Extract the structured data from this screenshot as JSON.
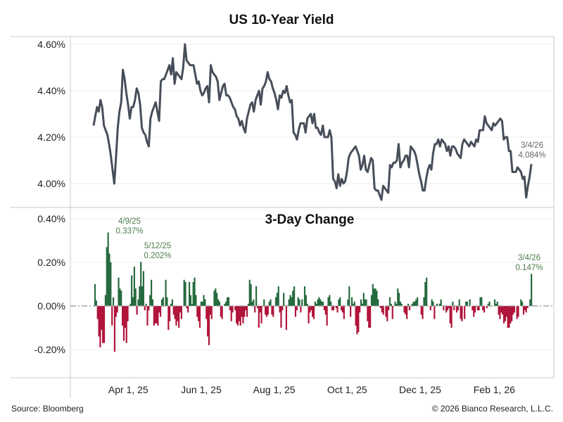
{
  "footer": {
    "source": "Source: Bloomberg",
    "copyright": "© 2026 Bianco Research, L.L.C."
  },
  "colors": {
    "line": "#474e5a",
    "positive": "#256a3e",
    "negative": "#b0143a",
    "grid": "#ececec",
    "border": "#c8c8c8",
    "annotation_gray": "#666666",
    "annotation_green": "#4e7d4e"
  },
  "chart_data": [
    {
      "type": "line",
      "title": "US 10-Year Yield",
      "xlabel": "",
      "ylabel": "",
      "ylim": [
        3.9,
        4.63
      ],
      "yticks": [
        4.0,
        4.2,
        4.4,
        4.6
      ],
      "ytick_labels": [
        "4.00%",
        "4.20%",
        "4.40%",
        "4.60%"
      ],
      "grid": true,
      "x_start": "2025-03-03",
      "x_end": "2026-03-04",
      "xticks": [
        "2025-04-01",
        "2025-06-01",
        "2025-08-01",
        "2025-10-01",
        "2025-12-01",
        "2026-02-01"
      ],
      "xtick_labels": [
        "Apr 1, 25",
        "Jun 1, 25",
        "Aug 1, 25",
        "Oct 1, 25",
        "Dec 1, 25",
        "Feb 1, 26"
      ],
      "series": [
        {
          "name": "US 10-Year Yield",
          "values": [
            4.25,
            4.29,
            4.33,
            4.31,
            4.36,
            4.33,
            4.25,
            4.23,
            4.21,
            4.17,
            4.12,
            4.06,
            4.0,
            4.11,
            4.24,
            4.31,
            4.35,
            4.49,
            4.45,
            4.39,
            4.34,
            4.28,
            4.33,
            4.33,
            4.36,
            4.41,
            4.39,
            4.34,
            4.24,
            4.22,
            4.21,
            4.18,
            4.16,
            4.28,
            4.31,
            4.33,
            4.35,
            4.31,
            4.27,
            4.44,
            4.45,
            4.45,
            4.47,
            4.49,
            4.51,
            4.47,
            4.54,
            4.43,
            4.48,
            4.47,
            4.46,
            4.45,
            4.5,
            4.6,
            4.53,
            4.52,
            4.51,
            4.51,
            4.51,
            4.47,
            4.43,
            4.44,
            4.4,
            4.38,
            4.39,
            4.41,
            4.42,
            4.35,
            4.51,
            4.48,
            4.47,
            4.46,
            4.44,
            4.36,
            4.39,
            4.42,
            4.43,
            4.38,
            4.38,
            4.37,
            4.35,
            4.33,
            4.32,
            4.29,
            4.28,
            4.25,
            4.27,
            4.24,
            4.22,
            4.28,
            4.31,
            4.34,
            4.35,
            4.31,
            4.36,
            4.38,
            4.4,
            4.34,
            4.41,
            4.42,
            4.44,
            4.48,
            4.45,
            4.44,
            4.41,
            4.39,
            4.36,
            4.32,
            4.38,
            4.37,
            4.4,
            4.39,
            4.42,
            4.38,
            4.35,
            4.36,
            4.22,
            4.21,
            4.19,
            4.23,
            4.26,
            4.26,
            4.26,
            4.22,
            4.28,
            4.29,
            4.3,
            4.26,
            4.3,
            4.24,
            4.24,
            4.22,
            4.21,
            4.25,
            4.2,
            4.2,
            4.2,
            4.23,
            4.2,
            4.02,
            4.01,
            3.98,
            4.04,
            3.99,
            4.02,
            4.0,
            4.01,
            4.05,
            4.11,
            4.13,
            4.14,
            4.15,
            4.16,
            4.14,
            4.12,
            4.06,
            4.08,
            4.12,
            4.06,
            4.05,
            4.08,
            4.11,
            4.1,
            3.98,
            3.97,
            3.97,
            3.95,
            3.93,
            3.99,
            3.98,
            3.97,
            3.96,
            4.08,
            4.07,
            4.09,
            4.09,
            4.1,
            4.17,
            4.07,
            4.09,
            4.1,
            4.12,
            4.12,
            4.07,
            4.16,
            4.15,
            4.14,
            4.12,
            4.08,
            4.04,
            4.01,
            3.97,
            3.97,
            4.02,
            4.06,
            4.08,
            4.06,
            4.13,
            4.17,
            4.17,
            4.19,
            4.16,
            4.19,
            4.18,
            4.17,
            4.14,
            4.16,
            4.12,
            4.16,
            4.16,
            4.15,
            4.13,
            4.12,
            4.11,
            4.17,
            4.19,
            4.18,
            4.17,
            4.16,
            4.18,
            4.17,
            4.16,
            4.19,
            4.18,
            4.23,
            4.23,
            4.23,
            4.29,
            4.26,
            4.25,
            4.24,
            4.23,
            4.26,
            4.25,
            4.26,
            4.27,
            4.28,
            4.27,
            4.19,
            4.2,
            4.2,
            4.14,
            4.14,
            4.05,
            4.05,
            4.05,
            4.07,
            4.06,
            4.05,
            4.02,
            4.03,
            3.94,
            3.99,
            4.03,
            4.084
          ]
        }
      ],
      "annotations": [
        {
          "date": "3/4/26",
          "label": "4.084%",
          "value": 4.084
        }
      ]
    },
    {
      "type": "bar",
      "title": "3-Day Change",
      "xlabel": "",
      "ylabel": "",
      "ylim": [
        -0.33,
        0.42
      ],
      "yticks": [
        -0.2,
        0.0,
        0.2,
        0.4
      ],
      "ytick_labels": [
        "-0.20%",
        "0.00%",
        "0.20%",
        "0.40%"
      ],
      "grid": true,
      "zero_line": "dashed",
      "series": [
        {
          "name": "3-Day Change",
          "values": [
            0.0,
            0.1,
            0.025,
            -0.06,
            -0.14,
            -0.19,
            -0.11,
            -0.17,
            -0.17,
            0.05,
            0.27,
            0.337,
            0.24,
            0.2,
            -0.09,
            0.04,
            -0.21,
            -0.05,
            -0.03,
            0.13,
            0.08,
            0.07,
            -0.09,
            -0.16,
            -0.1,
            -0.17,
            -0.07,
            0.0,
            0.01,
            0.14,
            0.04,
            0.18,
            0.08,
            -0.04,
            0.03,
            0.09,
            0.202,
            0.09,
            0.16,
            -0.02,
            0.01,
            -0.09,
            -0.02,
            0.05,
            0.12,
            0.03,
            -0.09,
            -0.08,
            -0.08,
            -0.09,
            -0.03,
            -0.05,
            0.03,
            0.04,
            0.0,
            0.12,
            0.04,
            -0.11,
            -0.07,
            0.01,
            0.03,
            -0.04,
            -0.06,
            -0.09,
            -0.07,
            -0.1,
            -0.03,
            -0.06,
            0.0,
            0.12,
            0.11,
            -0.01,
            -0.03,
            0.11,
            0.05,
            0.01,
            0.11,
            0.13,
            0.05,
            -0.05,
            -0.07,
            -0.1,
            0.02,
            0.02,
            0.05,
            0.03,
            -0.06,
            -0.14,
            -0.18,
            -0.04,
            -0.06,
            0.0,
            0.07,
            0.08,
            0.06,
            0.03,
            0.02,
            -0.05,
            -0.06,
            0.0,
            0.01,
            0.02,
            0.04,
            0.04,
            -0.02,
            -0.07,
            -0.03,
            0.0,
            -0.02,
            -0.08,
            -0.09,
            -0.07,
            -0.09,
            -0.05,
            -0.08,
            -0.05,
            -0.02,
            -0.05,
            0.01,
            0.12,
            0.1,
            0.02,
            0.03,
            -0.03,
            0.09,
            -0.01,
            -0.1,
            -0.03,
            -0.08,
            0.0,
            0.03,
            -0.04,
            -0.05,
            -0.04,
            0.02,
            0.03,
            -0.04,
            -0.05,
            0.0,
            0.04,
            0.06,
            0.09,
            -0.03,
            -0.1,
            -0.02,
            0.06,
            0.0,
            -0.11,
            0.0,
            0.03,
            0.05,
            0.04,
            0.07,
            0.09,
            -0.05,
            -0.02,
            0.04,
            0.03,
            -0.03,
            0.03,
            0.0,
            0.09,
            0.05,
            0.01,
            -0.08,
            -0.03,
            -0.02,
            -0.05,
            -0.06,
            0.02,
            0.01,
            0.03,
            0.04,
            0.03,
            0.02,
            0.02,
            -0.02,
            -0.04,
            -0.09,
            0.04,
            0.05,
            0.02,
            -0.02,
            -0.02,
            0.0,
            -0.01,
            -0.03,
            0.03,
            0.04,
            -0.02,
            -0.03,
            -0.06,
            0.0,
            0.0,
            0.03,
            0.09,
            -0.05,
            0.04,
            0.01,
            0.02,
            -0.09,
            -0.13,
            -0.12,
            -0.03,
            0.03,
            0.01,
            0.06,
            0.03,
            0.03,
            -0.07,
            -0.1,
            -0.1,
            0.05,
            0.1,
            0.08,
            0.08,
            0.07,
            0.03,
            0.0,
            -0.01,
            -0.03,
            -0.04,
            0.0,
            -0.05,
            -0.07,
            -0.02,
            0.04,
            0.01,
            -0.06,
            0.0,
            0.02,
            0.01,
            0.08,
            0.06,
            0.02,
            0.01,
            0.0,
            -0.03,
            -0.04,
            -0.06,
            0.01,
            -0.02,
            0.0,
            0.01,
            0.02,
            0.02,
            0.03,
            0.04,
            0.0,
            0.0,
            -0.04,
            -0.06,
            0.04,
            0.11,
            0.13,
            0.0,
            0.0,
            -0.02,
            0.03,
            0.02,
            -0.06,
            0.0,
            0.01,
            0.0,
            0.01,
            0.03,
            0.0,
            -0.02,
            0.0,
            -0.03,
            -0.02,
            -0.01,
            -0.08,
            -0.1,
            0.02,
            -0.02,
            0.0,
            -0.03,
            -0.02,
            0.03,
            -0.06,
            -0.07,
            0.0,
            -0.06,
            0.02,
            0.02,
            0.0,
            0.03,
            0.0,
            -0.02,
            -0.05,
            -0.03,
            0.0,
            -0.02,
            -0.02,
            0.04,
            0.04,
            -0.02,
            -0.03,
            0.0,
            -0.01,
            0.01,
            0.02,
            0.0,
            0.0,
            0.0,
            0.03,
            0.01,
            0.02,
            -0.04,
            -0.06,
            -0.03,
            -0.04,
            -0.08,
            -0.07,
            -0.05,
            -0.1,
            -0.1,
            -0.08,
            -0.07,
            -0.04,
            -0.03,
            0.0,
            -0.06,
            -0.05,
            0.0,
            0.03,
            0.02,
            -0.04,
            -0.02,
            -0.03,
            -0.01,
            0.0,
            0.03,
            0.147
          ]
        }
      ],
      "annotations": [
        {
          "date": "4/9/25",
          "label": "0.337%",
          "value": 0.337
        },
        {
          "date": "5/12/25",
          "label": "0.202%",
          "value": 0.202
        },
        {
          "date": "3/4/26",
          "label": "0.147%",
          "value": 0.147
        }
      ]
    }
  ]
}
